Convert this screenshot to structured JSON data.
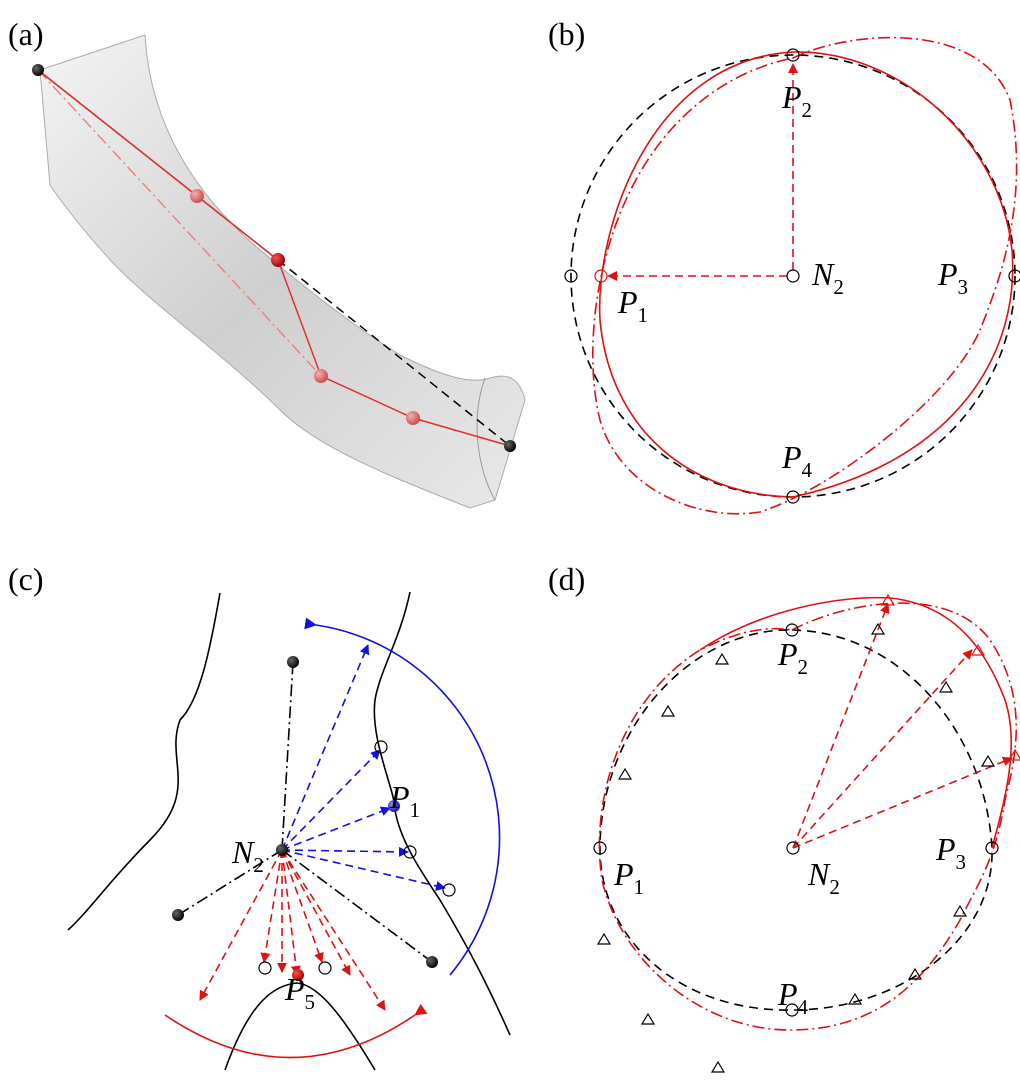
{
  "panels": [
    {
      "label": "(a)"
    },
    {
      "label": "(b)",
      "labels": [
        {
          "main": "P",
          "sub": "2"
        },
        {
          "main": "N",
          "sub": "2"
        },
        {
          "main": "P",
          "sub": "3"
        },
        {
          "main": "P",
          "sub": "1"
        },
        {
          "main": "P",
          "sub": "4"
        }
      ]
    },
    {
      "label": "(c)",
      "labels": [
        {
          "main": "N",
          "sub": "2"
        },
        {
          "main": "P",
          "sub": "1"
        },
        {
          "main": "P",
          "sub": "5"
        }
      ]
    },
    {
      "label": "(d)",
      "labels": [
        {
          "main": "P",
          "sub": "2"
        },
        {
          "main": "P",
          "sub": "1"
        },
        {
          "main": "N",
          "sub": "2"
        },
        {
          "main": "P",
          "sub": "3"
        },
        {
          "main": "P",
          "sub": "4"
        }
      ]
    }
  ]
}
